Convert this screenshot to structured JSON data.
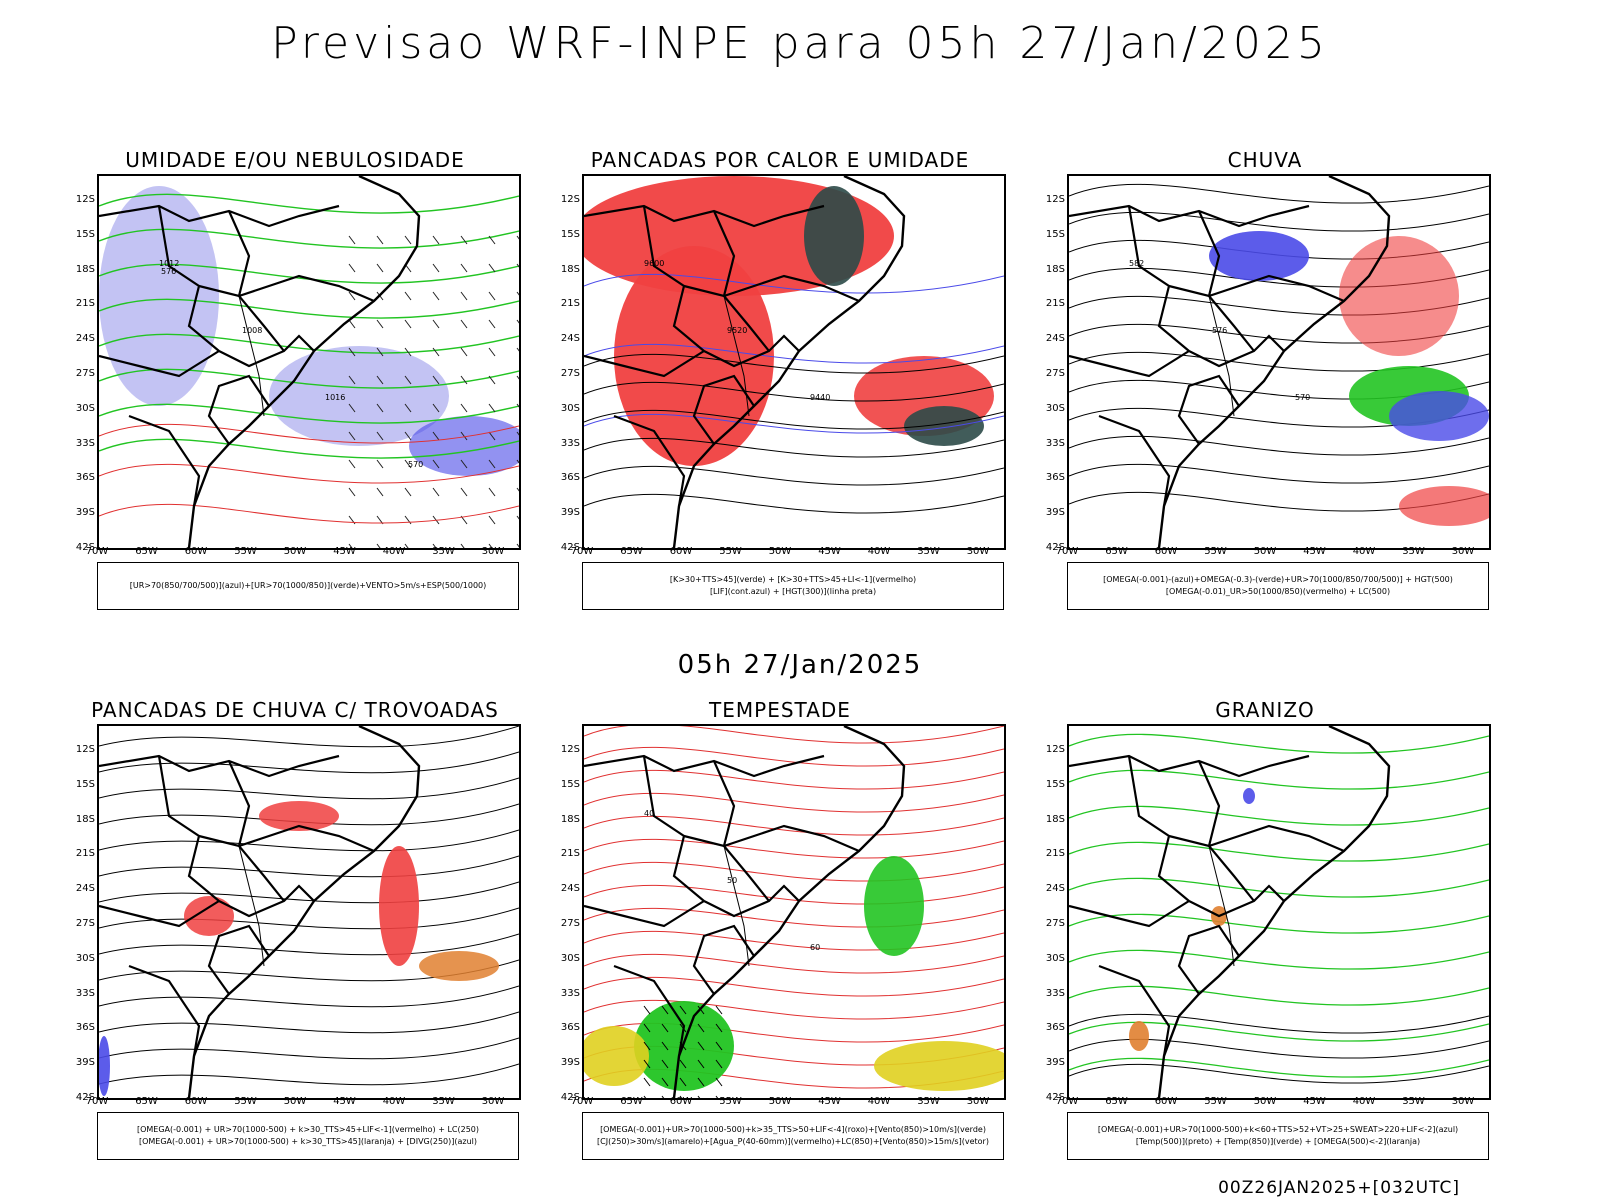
{
  "header": {
    "title": "Previsao WRF-INPE  para 05h 27/Jan/2025"
  },
  "middle": {
    "time_label": "05h 27/Jan/2025"
  },
  "footer": {
    "run_label": "00Z26JAN2025+[032UTC]"
  },
  "axes": {
    "lat_labels": [
      "12S",
      "15S",
      "18S",
      "21S",
      "24S",
      "27S",
      "30S",
      "33S",
      "36S",
      "39S",
      "42S"
    ],
    "lon_labels": [
      "70W",
      "65W",
      "60W",
      "55W",
      "50W",
      "45W",
      "40W",
      "35W",
      "30W"
    ]
  },
  "colors": {
    "blue": "#4a4ae8",
    "lavender": "#b4b4f0",
    "green": "#22c422",
    "red": "#f04040",
    "darkteal": "#2c4a48",
    "orange": "#e08030",
    "yellow": "#e0d020",
    "purple": "#a020c0"
  },
  "panels": [
    {
      "title": "UMIDADE E/OU NEBULOSIDADE",
      "legend": [
        "[UR>70(850/700/500)](azul)+[UR>70(1000/850)](verde)+VENTO>5m/s+ESP(500/1000)"
      ],
      "contour_labels": [
        "1012",
        "1008",
        "1016",
        "570",
        "576"
      ]
    },
    {
      "title": "PANCADAS POR CALOR E UMIDADE",
      "legend": [
        "[K>30+TTS>45](verde)  +  [K>30+TTS>45+LI<-1](vermelho)",
        "[LIF](cont.azul)  +  [HGT(300)](linha preta)"
      ],
      "contour_labels": [
        "9600",
        "9520",
        "9440"
      ]
    },
    {
      "title": "CHUVA",
      "legend": [
        "[OMEGA(-0.001)-(azul)+OMEGA(-0.3)-(verde)+UR>70(1000/850/700/500)]  +  HGT(500)",
        "[OMEGA(-0.01)_UR>50(1000/850)(vermelho)  +  LC(500)"
      ],
      "contour_labels": [
        "582",
        "576",
        "570"
      ]
    },
    {
      "title": "PANCADAS DE CHUVA C/ TROVOADAS",
      "legend": [
        "[OMEGA(-0.001)  +  UR>70(1000-500)  +  k>30_TTS>45+LIF<-1](vermelho)  +  LC(250)",
        "[OMEGA(-0.001)  +  UR>70(1000-500)  +  k>30_TTS>45](laranja)  +  [DIVG(250)](azul)"
      ],
      "contour_labels": []
    },
    {
      "title": "TEMPESTADE",
      "legend": [
        "[OMEGA(-0.001)+UR>70(1000-500)+k>35_TTS>50+LIF<-4](roxo)+[Vento(850)>10m/s](verde)",
        "[CJ(250)>30m/s](amarelo)+[Agua_P(40-60mm)](vermelho)+LC(850)+[Vento(850)>15m/s](vetor)"
      ],
      "contour_labels": [
        "40",
        "50",
        "60"
      ]
    },
    {
      "title": "GRANIZO",
      "legend": [
        "[OMEGA(-0.001)+UR>70(1000-500)+k<60+TTS>52+VT>25+SWEAT>220+LIF<-2](azul)",
        "[Temp(500)](preto)  +  [Temp(850)](verde)  +  [OMEGA(500)<-2](laranja)"
      ],
      "contour_labels": []
    }
  ]
}
